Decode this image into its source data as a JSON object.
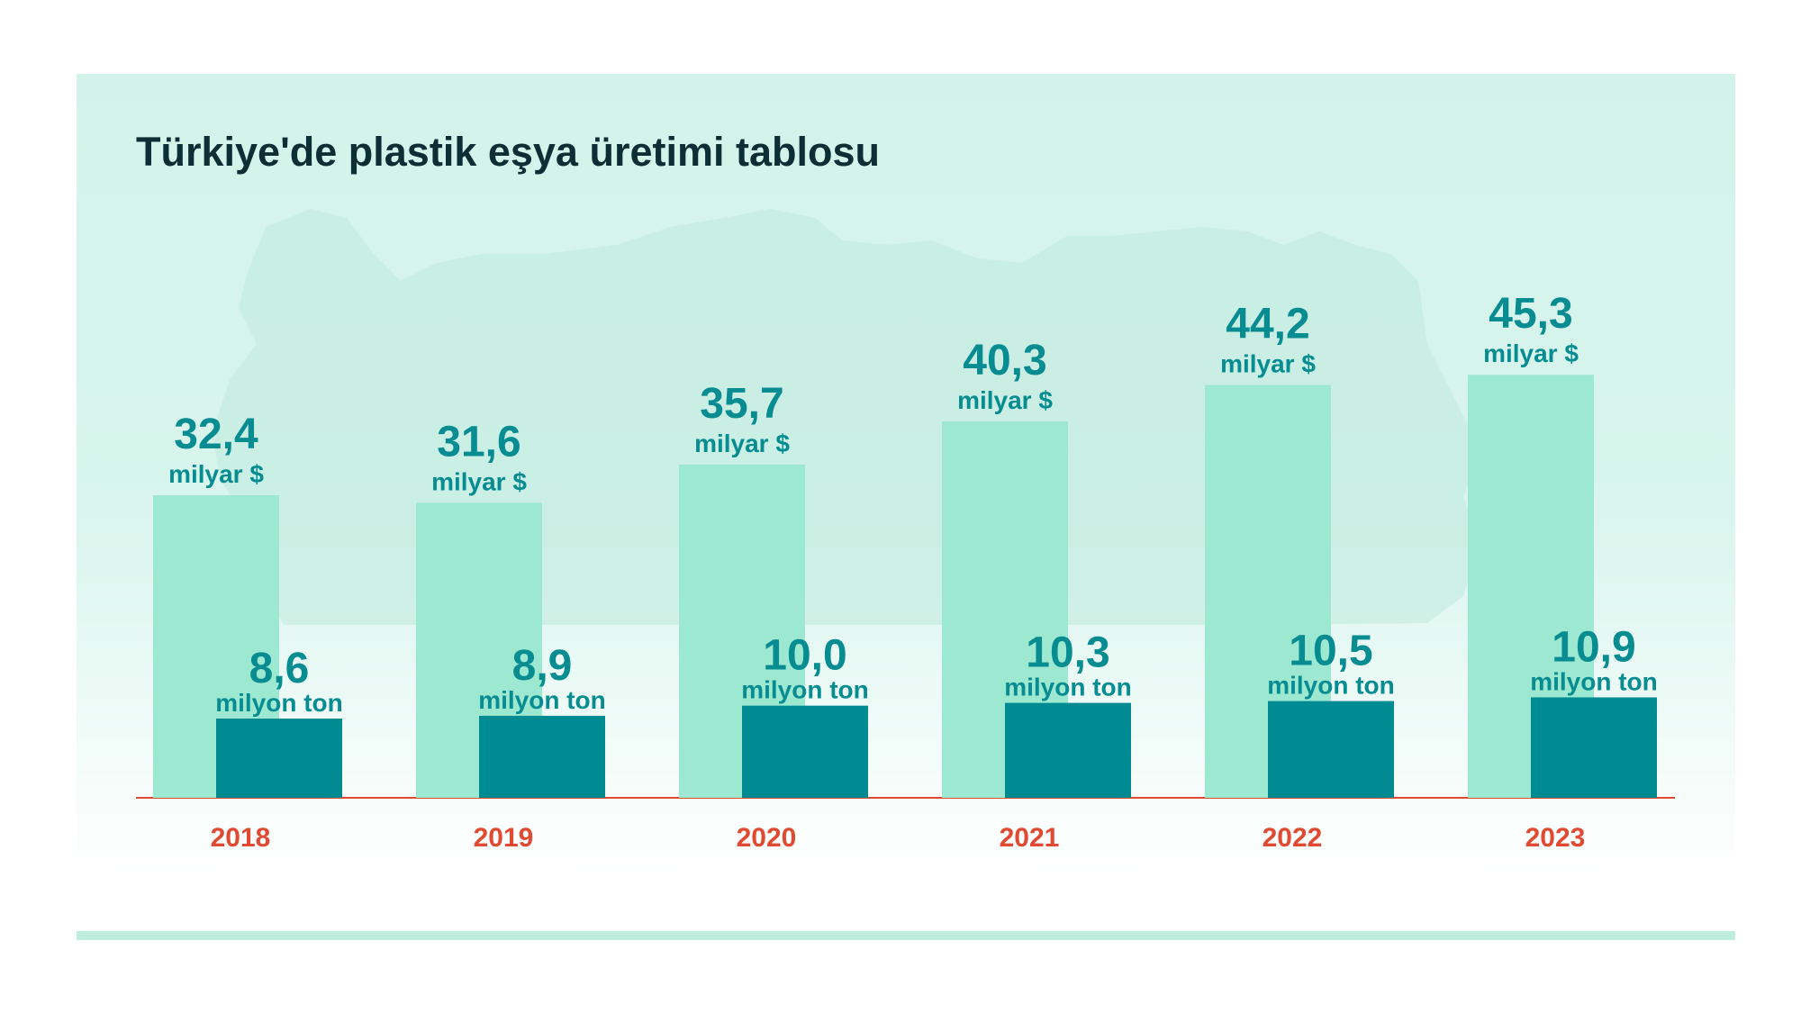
{
  "colors": {
    "value_bar": "#9de8d1",
    "volume_bar": "#008b93",
    "label": "#068c91",
    "year": "#e04a32",
    "baseline": "#e04a32",
    "title": "#0e2e36"
  },
  "chart_data": {
    "type": "bar",
    "title": "Türkiye'de plastik eşya üretimi tablosu",
    "categories": [
      "2018",
      "2019",
      "2020",
      "2021",
      "2022",
      "2023"
    ],
    "series": [
      {
        "unit": "milyar $",
        "values": [
          32.4,
          31.6,
          35.7,
          40.3,
          44.2,
          45.3
        ],
        "labels": [
          "32,4",
          "31,6",
          "35,7",
          "40,3",
          "44,2",
          "45,3"
        ]
      },
      {
        "unit": "milyon ton",
        "values": [
          8.6,
          8.9,
          10.0,
          10.3,
          10.5,
          10.9
        ],
        "labels": [
          "8,6",
          "8,9",
          "10,0",
          "10,3",
          "10,5",
          "10,9"
        ]
      }
    ],
    "grid": false,
    "legend": "none"
  }
}
